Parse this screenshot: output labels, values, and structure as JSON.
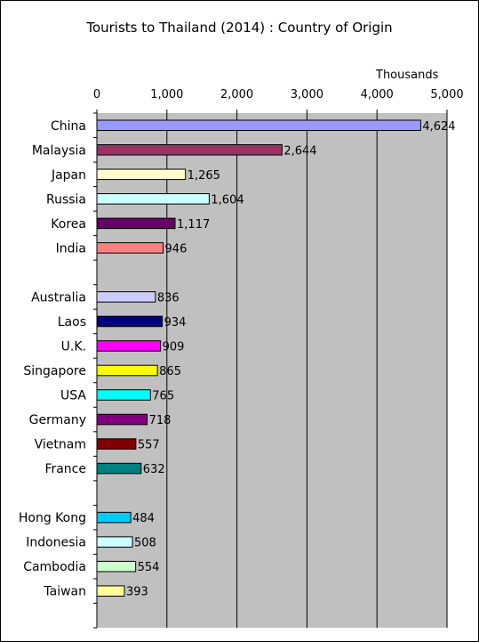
{
  "chart_data": {
    "type": "bar",
    "orientation": "horizontal",
    "title": "Tourists to Thailand (2014) : Country of Origin",
    "unit_label": "Thousands",
    "xlim": [
      0,
      5000
    ],
    "xticks": [
      "0",
      "1,000",
      "2,000",
      "3,000",
      "4,000",
      "5,000"
    ],
    "grid": true,
    "background": "#c0c0c0",
    "categories": [
      "China",
      "Malaysia",
      "Japan",
      "Russia",
      "Korea",
      "India",
      "",
      "Australia",
      "Laos",
      "U.K.",
      "Singapore",
      "USA",
      "Germany",
      "Vietnam",
      "France",
      "",
      "Hong Kong",
      "Indonesia",
      "Cambodia",
      "Taiwan",
      ""
    ],
    "values": [
      4624,
      2644,
      1265,
      1604,
      1117,
      946,
      null,
      836,
      934,
      909,
      865,
      765,
      718,
      557,
      632,
      null,
      484,
      508,
      554,
      393,
      null
    ],
    "value_labels": [
      "4,624",
      "2,644",
      "1,265",
      "1,604",
      "1,117",
      "946",
      "",
      "836",
      "934",
      "909",
      "865",
      "765",
      "718",
      "557",
      "632",
      "",
      "484",
      "508",
      "554",
      "393",
      ""
    ],
    "colors": [
      "#9999ff",
      "#993366",
      "#ffffcc",
      "#ccffff",
      "#660066",
      "#ff8080",
      "",
      "#ccccff",
      "#000080",
      "#ff00ff",
      "#ffff00",
      "#00ffff",
      "#800080",
      "#800000",
      "#008080",
      "",
      "#00ccff",
      "#ccffff",
      "#ccffcc",
      "#ffff99",
      ""
    ]
  }
}
